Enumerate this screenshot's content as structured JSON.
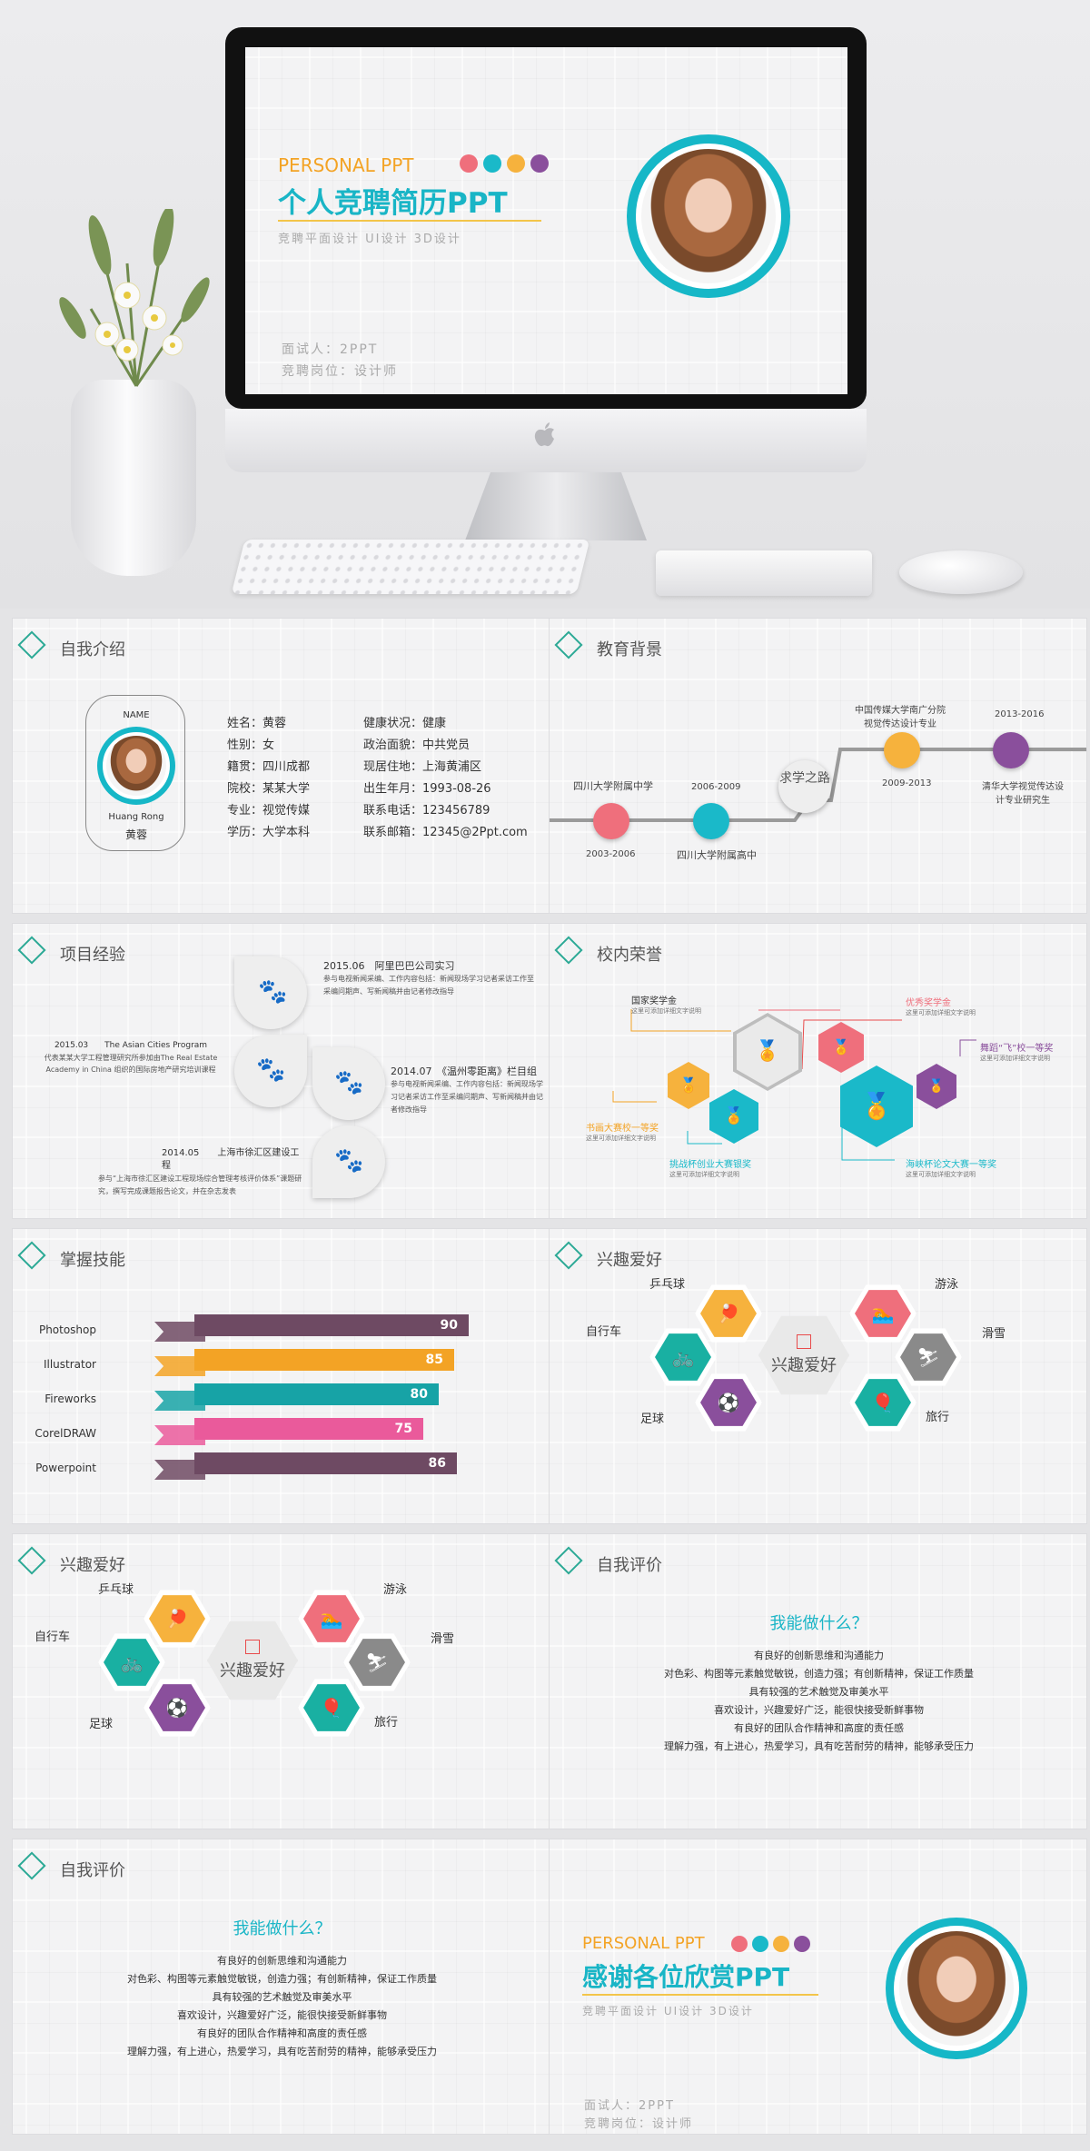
{
  "cover": {
    "tag": "PERSONAL PPT",
    "title": "个人竞聘简历PPT",
    "subtitle": "竞聘平面设计 UI设计 3D设计",
    "interviewee": "面试人：2PPT",
    "position": "竞聘岗位：设计师",
    "dot_colors": [
      "#ef6f7c",
      "#1ab9c9",
      "#f6b23d",
      "#8a4f9c"
    ]
  },
  "intro": {
    "title": "自我介绍",
    "name_label": "NAME",
    "name_en": "Huang Rong",
    "name_cn": "黄蓉",
    "left": [
      "姓名：黄蓉",
      "性别：女",
      "籍贯：四川成都",
      "院校：某某大学",
      "专业：视觉传媒",
      "学历：大学本科"
    ],
    "right": [
      "健康状况：健康",
      "政治面貌：中共党员",
      "现居住地：上海黄浦区",
      "出生年月：1993-08-26",
      "联系电话：123456789",
      "联系邮箱：12345@2Ppt.com"
    ]
  },
  "edu": {
    "title": "教育背景",
    "center": "求学之路",
    "items": [
      {
        "year": "2003-2006",
        "school": "四川大学附属中学",
        "color": "#ef6f7c"
      },
      {
        "year": "2006-2009",
        "school": "四川大学附属高中",
        "color": "#1ab9c9"
      },
      {
        "year": "2009-2013",
        "school": "中国传媒大学南广分院 视觉传达设计专业",
        "color": "#f6b23d"
      },
      {
        "year": "2013-2016",
        "school": "清华大学视觉传达设计专业研究生",
        "color": "#8a4f9c"
      }
    ]
  },
  "proj": {
    "title": "项目经验",
    "items": [
      {
        "head": "2015.06　阿里巴巴公司实习",
        "desc": "参与电视新闻采编、工作内容包括：新闻现场学习记者采访工作至采编问期声、写新闻稿并由记者修改指导"
      },
      {
        "head": "2015.03　　The Asian Cities Program",
        "desc": "代表某某大学工程管理研究所参加由The Real Estate Academy in China 组织的国际房地产研究培训课程"
      },
      {
        "head": "2014.07　《温州零距离》栏目组",
        "desc": "参与电视新闻采编、工作内容包括：新闻现场学习记者采访工作至采编问期声、写新闻稿并由记者修改指导"
      },
      {
        "head": "2014.05　　上海市徐汇区建设工程",
        "desc": "参与“上海市徐汇区建设工程现场综合管理考核评价体系”课题研究，撰写完成课题报告论文，并在杂志发表"
      }
    ]
  },
  "honor": {
    "title": "校内荣誉",
    "desc": "这里可添加详细文字说明",
    "labels": [
      "国家奖学金",
      "优秀奖学金",
      "舞蹈“飞”校一等奖",
      "书画大赛校一等奖",
      "挑战杯创业大赛银奖",
      "海峡杯论文大赛一等奖"
    ],
    "colors": [
      "#f6b23d",
      "#1ab9c9",
      "#ef6f7c",
      "#8a4f9c"
    ]
  },
  "skills": {
    "title": "掌握技能",
    "chart_data": {
      "type": "bar",
      "categories": [
        "Photoshop",
        "Illustrator",
        "Fireworks",
        "CorelDRAW",
        "Powerpoint"
      ],
      "values": [
        90,
        85,
        80,
        75,
        86
      ],
      "colors": [
        "#6e4a63",
        "#f3a325",
        "#17a3a6",
        "#ea5a9b",
        "#6e4a63"
      ],
      "xlim": [
        0,
        100
      ]
    }
  },
  "hobby": {
    "title": "兴趣爱好",
    "center": "兴趣爱好",
    "items": [
      "乒乓球",
      "自行车",
      "足球",
      "游泳",
      "滑雪",
      "旅行"
    ],
    "icon_names": [
      "ping-pong-icon",
      "bicycle-icon",
      "soccer-icon",
      "swim-icon",
      "ski-icon",
      "balloon-icon"
    ]
  },
  "eval": {
    "title": "自我评价",
    "heading": "我能做什么？",
    "lines": [
      "有良好的创新思维和沟通能力",
      "对色彩、构图等元素触觉敏锐，创造力强；有创新精神，保证工作质量",
      "具有较强的艺术触觉及审美水平",
      "喜欢设计，兴趣爱好广泛，能很快接受新鲜事物",
      "有良好的团队合作精神和高度的责任感",
      "理解力强，有上进心，热爱学习，具有吃苦耐劳的精神，能够承受压力"
    ]
  },
  "thanks": {
    "tag": "PERSONAL PPT",
    "title": "感谢各位欣赏PPT",
    "subtitle": "竞聘平面设计 UI设计 3D设计",
    "interviewee": "面试人：2PPT",
    "position": "竞聘岗位：设计师"
  }
}
